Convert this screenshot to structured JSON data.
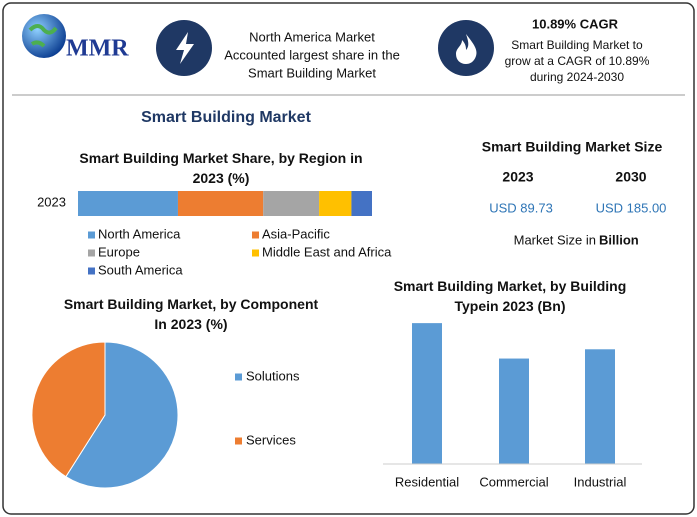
{
  "header": {
    "logo": "MMR",
    "box1": [
      "North America Market",
      "Accounted largest share in the",
      "Smart Building Market"
    ],
    "box2_title": "10.89% CAGR",
    "box2": [
      "Smart Building Market to",
      "grow at a CAGR of 10.89%",
      "during 2024-2030"
    ]
  },
  "title": "Smart Building Market",
  "market_size": {
    "title": "Smart Building Market Size",
    "years": [
      "2023",
      "2030"
    ],
    "values": [
      "USD 89.73",
      "USD 185.00"
    ],
    "note": "Market Size in",
    "unit": "Billion"
  },
  "chart_data": [
    {
      "type": "stacked-bar",
      "title": "Smart Building Market Share, by Region in 2023 (%)",
      "categories": [
        "2023"
      ],
      "xlim": [
        0,
        100
      ],
      "series": [
        {
          "name": "North America",
          "color": "#5b9bd5",
          "values": [
            34
          ]
        },
        {
          "name": "Asia-Pacific",
          "color": "#ed7d31",
          "values": [
            29
          ]
        },
        {
          "name": "Europe",
          "color": "#a5a5a5",
          "values": [
            19
          ]
        },
        {
          "name": "Middle East and Africa",
          "color": "#ffc000",
          "values": [
            11
          ]
        },
        {
          "name": "South America",
          "color": "#4472c4",
          "values": [
            7
          ]
        }
      ]
    },
    {
      "type": "pie",
      "title": "Smart Building Market, by Component In 2023 (%)",
      "categories": [
        "Solutions",
        "Services"
      ],
      "values": [
        59,
        41
      ],
      "colors": [
        "#5b9bd5",
        "#ed7d31"
      ]
    },
    {
      "type": "bar",
      "title": "Smart Building Market, by Building Typein 2023 (Bn)",
      "categories": [
        "Residential",
        "Commercial",
        "Industrial"
      ],
      "values": [
        35,
        26.2,
        28.5
      ],
      "color": "#5b9bd5",
      "ylim": [
        0,
        40
      ]
    }
  ]
}
